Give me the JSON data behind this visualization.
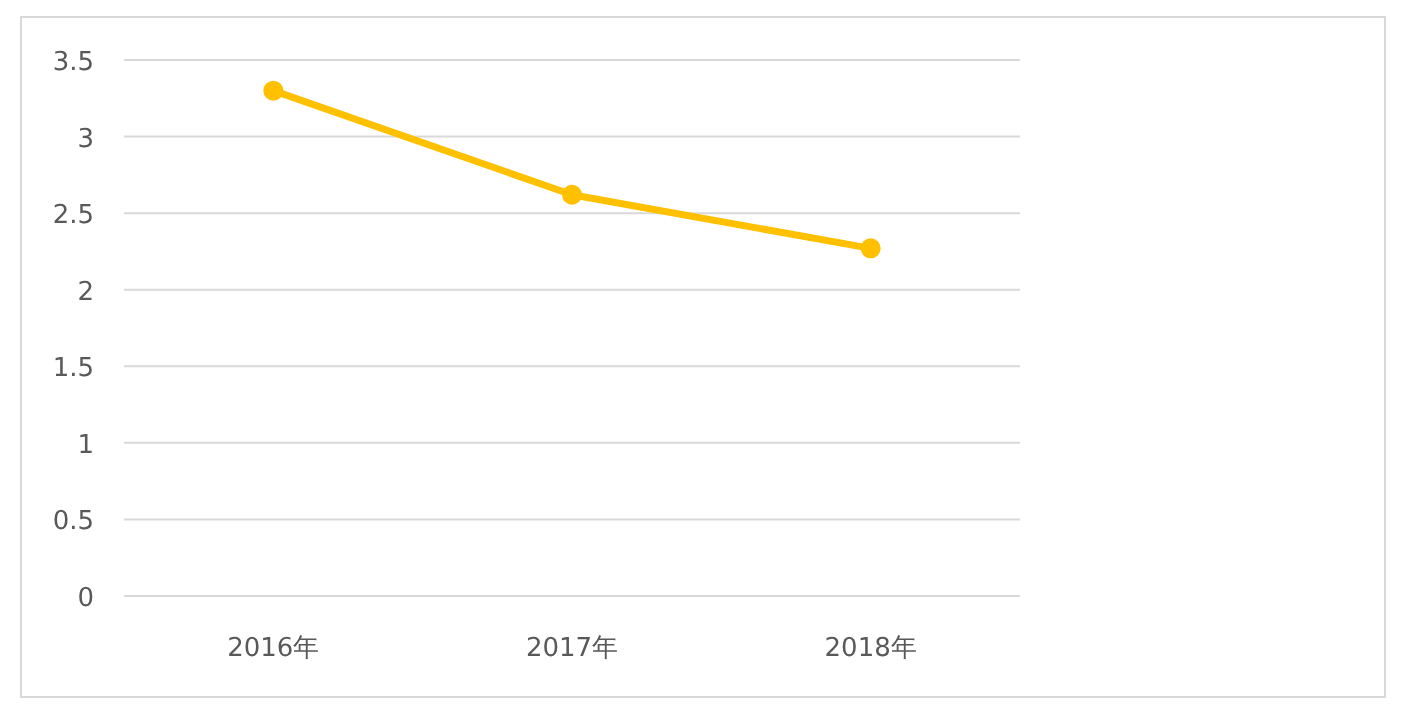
{
  "chart_data": {
    "type": "line",
    "categories": [
      "2016年",
      "2017年",
      "2018年"
    ],
    "series": [
      {
        "color": "#ffc000",
        "values": [
          3.3,
          2.62,
          2.27
        ]
      }
    ],
    "ylim": [
      0,
      3.5
    ],
    "yticks": [
      0,
      0.5,
      1,
      1.5,
      2,
      2.5,
      3,
      3.5
    ],
    "grid": "y",
    "marker": "circle"
  }
}
